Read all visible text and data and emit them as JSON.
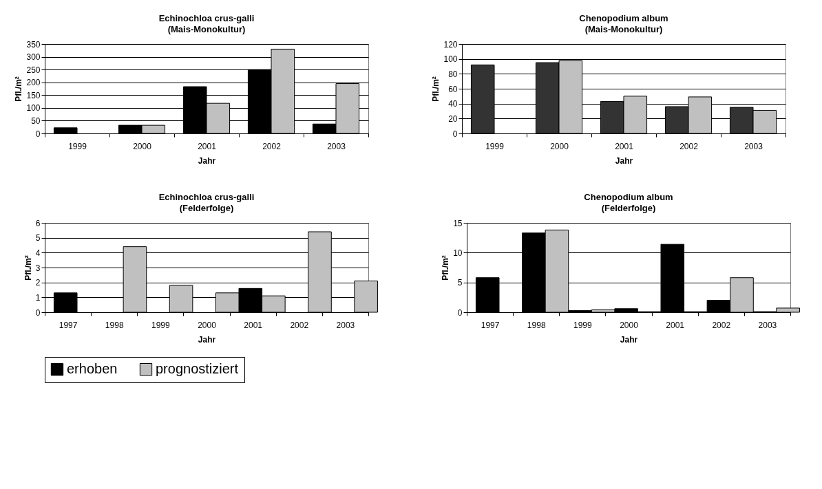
{
  "chart_data": [
    {
      "type": "bar",
      "title": "Echinochloa crus-galli",
      "subtitle": "(Mais-Monokultur)",
      "xlabel": "Jahr",
      "ylabel": "Pfl./m²",
      "categories": [
        "1999",
        "2000",
        "2001",
        "2002",
        "2003"
      ],
      "ylim": [
        0,
        350
      ],
      "yticks": [
        0,
        50,
        100,
        150,
        200,
        250,
        300,
        350
      ],
      "grid": "y",
      "legend": false,
      "series": [
        {
          "color": "#000000",
          "values": [
            22,
            32,
            183,
            250,
            37
          ]
        },
        {
          "color": "#c0c0c0",
          "values": [
            null,
            32,
            118,
            330,
            195
          ]
        }
      ]
    },
    {
      "type": "bar",
      "title": "Chenopodium album",
      "subtitle": "(Mais-Monokultur)",
      "xlabel": "Jahr",
      "ylabel": "Pfl./m²",
      "categories": [
        "1999",
        "2000",
        "2001",
        "2002",
        "2003"
      ],
      "ylim": [
        0,
        120
      ],
      "yticks": [
        0,
        20,
        40,
        60,
        80,
        100,
        120
      ],
      "grid": "y",
      "legend": false,
      "series": [
        {
          "color": "#333333",
          "values": [
            92,
            95,
            43,
            36,
            35
          ]
        },
        {
          "color": "#c0c0c0",
          "values": [
            null,
            98,
            50,
            49,
            31
          ]
        }
      ]
    },
    {
      "type": "bar",
      "title": "Echinochloa crus-galli",
      "subtitle": "(Felderfolge)",
      "xlabel": "Jahr",
      "ylabel": "Pfl./m²",
      "categories": [
        "1997",
        "1998",
        "1999",
        "2000",
        "2001",
        "2002",
        "2003"
      ],
      "ylim": [
        0,
        6
      ],
      "yticks": [
        0,
        1,
        2,
        3,
        4,
        5,
        6
      ],
      "grid": "y",
      "legend": "bottom",
      "series": [
        {
          "name": "erhoben",
          "color": "#000000",
          "values": [
            1.3,
            null,
            null,
            null,
            1.6,
            null,
            null
          ]
        },
        {
          "name": "prognostiziert",
          "color": "#c0c0c0",
          "values": [
            null,
            4.4,
            1.8,
            1.3,
            1.1,
            5.4,
            2.1
          ]
        }
      ]
    },
    {
      "type": "bar",
      "title": "Chenopodium album",
      "subtitle": "(Felderfolge)",
      "xlabel": "Jahr",
      "ylabel": "Pfl./m²",
      "categories": [
        "1997",
        "1998",
        "1999",
        "2000",
        "2001",
        "2002",
        "2003"
      ],
      "ylim": [
        0,
        15
      ],
      "yticks": [
        0,
        5,
        10,
        15
      ],
      "grid": "y",
      "legend": false,
      "series": [
        {
          "color": "#000000",
          "values": [
            5.8,
            13.3,
            0.3,
            0.6,
            11.4,
            2.0,
            0.1
          ]
        },
        {
          "color": "#c0c0c0",
          "values": [
            null,
            13.8,
            0.4,
            0.1,
            0.1,
            5.8,
            0.7
          ]
        }
      ]
    }
  ]
}
